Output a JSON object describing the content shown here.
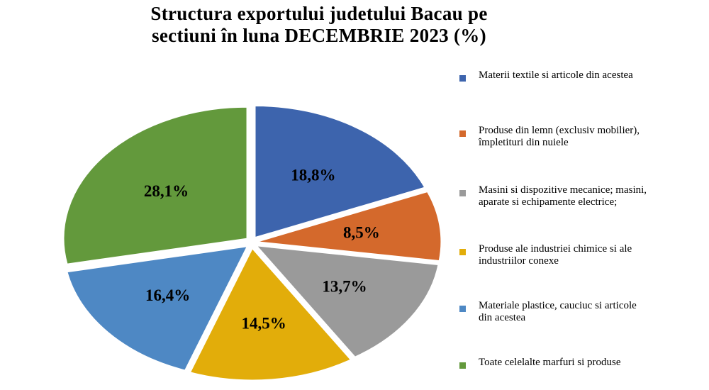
{
  "chart_data": {
    "type": "pie",
    "title": "Structura exportului judetului Bacau pe sectiuni în luna DECEMBRIE  2023 (%)",
    "title_lines": [
      "Structura exportului judetului Bacau pe",
      "sectiuni în luna DECEMBRIE  2023 (%)"
    ],
    "slices": [
      {
        "label": "Materii textile si articole din acestea",
        "value": 18.8,
        "display": "18,8%",
        "color": "#3d64ad"
      },
      {
        "label": "Produse din lemn (exclusiv mobilier), împletituri din nuiele",
        "value": 8.5,
        "display": "8,5%",
        "color": "#d4692c"
      },
      {
        "label": "Masini si dispozitive mecanice; masini, aparate si echipamente electrice;",
        "value": 13.7,
        "display": "13,7%",
        "color": "#9a9a9a"
      },
      {
        "label": "Produse ale industriei chimice si ale industriilor conexe",
        "value": 14.5,
        "display": "14,5%",
        "color": "#e2ad0a"
      },
      {
        "label": "Materiale plastice, cauciuc si articole din acestea",
        "value": 16.4,
        "display": "16,4%",
        "color": "#4e88c4"
      },
      {
        "label": "Toate celelalte marfuri si produse",
        "value": 28.1,
        "display": "28,1%",
        "color": "#63993c"
      }
    ],
    "legend_position": "right"
  }
}
